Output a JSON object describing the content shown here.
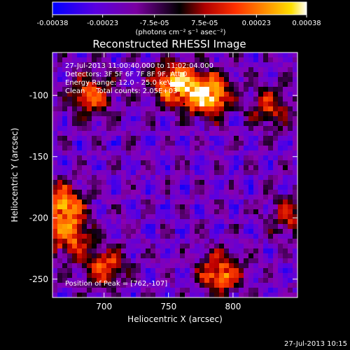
{
  "chart_data": {
    "type": "heatmap",
    "title": "Reconstructed RHESSI Image",
    "xlabel": "Heliocentric X (arcsec)",
    "ylabel": "Heliocentric Y (arcsec)",
    "xlim": [
      660,
      850
    ],
    "ylim": [
      -265,
      -65
    ],
    "x_ticks": [
      "700",
      "750",
      "800"
    ],
    "x_tick_values": [
      700,
      750,
      800
    ],
    "y_ticks": [
      "-100",
      "-150",
      "-200",
      "-250"
    ],
    "y_tick_values": [
      -100,
      -150,
      -200,
      -250
    ],
    "colorbar": {
      "min": -0.00038,
      "max": 0.00038,
      "tick_labels": [
        "-0.00038",
        "-0.00023",
        "-7.5e-05",
        "7.5e-05",
        "0.00023",
        "0.00038"
      ],
      "tick_values": [
        -0.00038,
        -0.00023,
        -7.5e-05,
        7.5e-05,
        0.00023,
        0.00038
      ],
      "unit_label": "(photons cm⁻² s⁻¹ asec⁻²)",
      "colors": [
        "#0000ff",
        "#5a00e0",
        "#8a00b0",
        "#000000",
        "#c00000",
        "#ff4000",
        "#ff8000",
        "#ffd000",
        "#ffffff"
      ]
    },
    "info_lines": [
      "27-Jul-2013 11:00:40.000 to 11:02:04.000",
      "Detectors: 3F 5F 6F 7F 8F 9F, Att 0",
      "Energy Range: 12.0 - 25.0 keV",
      "Clean     Total counts: 2.05E+03"
    ],
    "peak_label": "Position of Peak = [762,-107]",
    "peak": [
      762,
      -107
    ],
    "bright_sources": [
      {
        "x": 780,
        "y": -100,
        "level": 1.0
      },
      {
        "x": 755,
        "y": -90,
        "level": 0.85
      },
      {
        "x": 690,
        "y": -100,
        "level": 0.6
      },
      {
        "x": 668,
        "y": -190,
        "level": 0.75
      },
      {
        "x": 672,
        "y": -215,
        "level": 0.6
      },
      {
        "x": 700,
        "y": -240,
        "level": 0.55
      },
      {
        "x": 790,
        "y": -245,
        "level": 0.65
      },
      {
        "x": 845,
        "y": -200,
        "level": 0.4
      },
      {
        "x": 830,
        "y": -110,
        "level": 0.4
      }
    ],
    "grid": false
  },
  "footer": {
    "timestamp": "27-Jul-2013 10:15"
  }
}
